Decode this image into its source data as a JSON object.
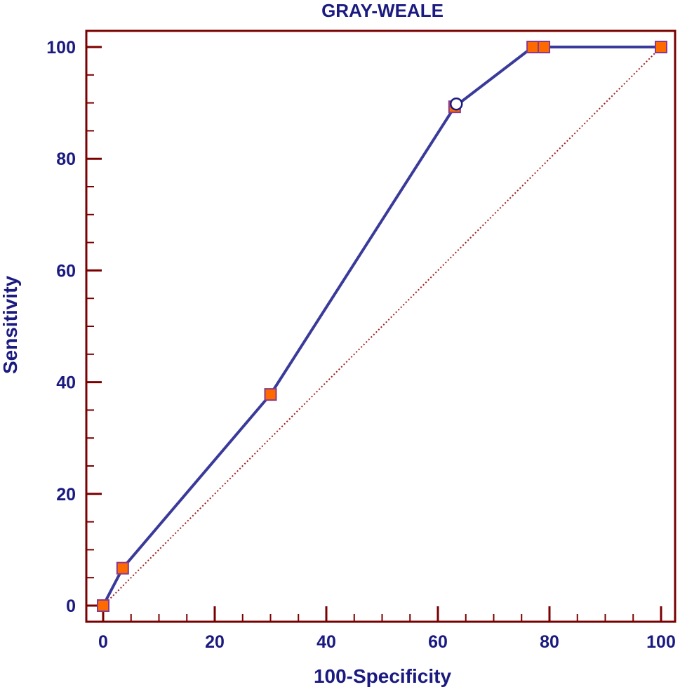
{
  "chart_data": {
    "type": "line",
    "title": "GRAY-WEALE",
    "xlabel": "100-Specificity",
    "ylabel": "Sensitivity",
    "xlim": [
      0,
      100
    ],
    "ylim": [
      0,
      100
    ],
    "x_ticks": [
      0,
      20,
      40,
      60,
      80,
      100
    ],
    "y_ticks": [
      0,
      20,
      40,
      60,
      80,
      100
    ],
    "x_tick_labels": [
      "0",
      "20",
      "40",
      "60",
      "80",
      "100"
    ],
    "y_tick_labels": [
      "0",
      "20",
      "40",
      "60",
      "80",
      "100"
    ],
    "grid": false,
    "series": [
      {
        "x": [
          0,
          3.5,
          30,
          63,
          77,
          79,
          100
        ],
        "y": [
          0,
          6.7,
          37.8,
          89.3,
          100,
          100,
          100
        ]
      }
    ],
    "reference_line": {
      "x": [
        0,
        100
      ],
      "y": [
        0,
        100
      ]
    },
    "highlight_point": {
      "x": 63.3,
      "y": 89.8
    },
    "colors": {
      "roc_line": "#3a3a9a",
      "marker_fill": "#ff6a00",
      "marker_edge": "#8a3a8a",
      "frame": "#7a0000",
      "text": "#1a1a80",
      "reference": "#a02020"
    }
  }
}
